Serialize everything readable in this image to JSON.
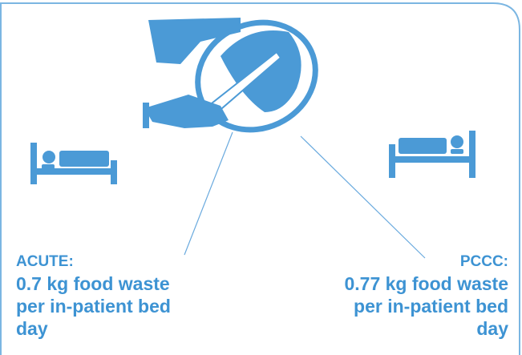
{
  "left": {
    "label": "ACUTE:",
    "lines": [
      "0.7 kg food waste",
      "per in-patient bed",
      "day"
    ]
  },
  "right": {
    "label": "PCCC:",
    "lines": [
      "0.77 kg food waste",
      "per in-patient bed",
      "day"
    ]
  }
}
